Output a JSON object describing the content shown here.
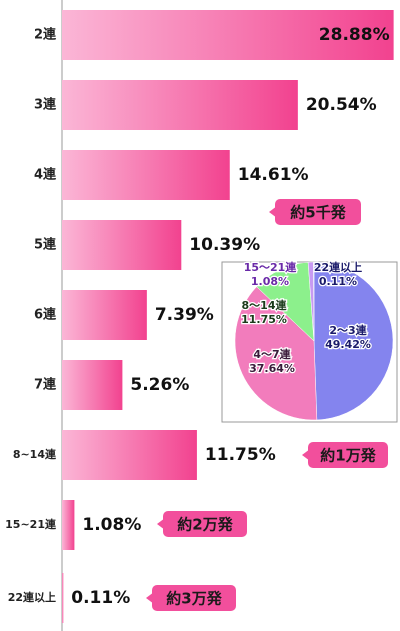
{
  "chart_data": [
    {
      "type": "bar",
      "orientation": "horizontal",
      "categories": [
        "2連",
        "3連",
        "4連",
        "5連",
        "6連",
        "7連",
        "8~14連",
        "15~21連",
        "22連以上"
      ],
      "values": [
        28.88,
        20.54,
        14.61,
        10.39,
        7.39,
        5.26,
        11.75,
        1.08,
        0.11
      ],
      "value_labels": [
        "28.88%",
        "20.54%",
        "14.61%",
        "10.39%",
        "7.39%",
        "5.26%",
        "11.75%",
        "1.08%",
        "0.11%"
      ],
      "xlim": [
        0,
        29
      ],
      "annotations": [
        "約5千発",
        "約1万発",
        "約2万発",
        "約3万発"
      ]
    },
    {
      "type": "pie",
      "categories": [
        "2～3連",
        "4～7連",
        "8～14連",
        "15～21連",
        "22連以上"
      ],
      "values": [
        49.42,
        37.64,
        11.75,
        1.08,
        0.11
      ],
      "value_labels": [
        "49.42%",
        "37.64%",
        "11.75%",
        "1.08%",
        "0.11%"
      ],
      "colors": [
        "#8484ee",
        "#f27cbc",
        "#8cf08c",
        "#c89af2",
        "#6cd4f4"
      ]
    }
  ]
}
